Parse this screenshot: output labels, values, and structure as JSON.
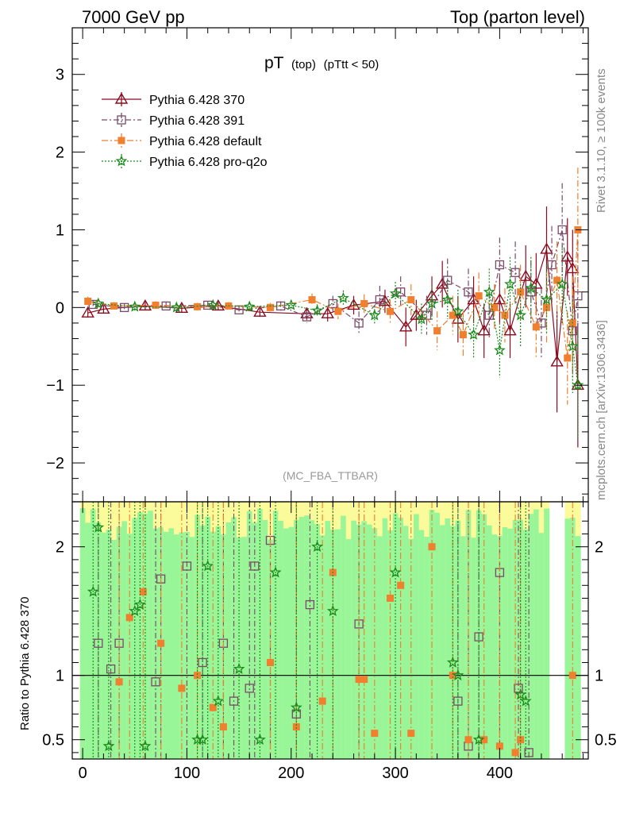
{
  "header": {
    "left_label": "7000 GeV pp",
    "right_label": "Top (parton level)"
  },
  "side_labels": {
    "rivet": "Rivet 3.1.10, ≥ 100k events",
    "mcplots": "mcplots.cern.ch [arXiv:1306.3436]"
  },
  "plot_title": {
    "main": "pT",
    "sub1": "(top)",
    "sub2": "(pTtt < 50)"
  },
  "analysis_tag": "(MC_FBA_TTBAR)",
  "colors": {
    "p370": "#8b0a1e",
    "p391": "#7a4a68",
    "pdefault": "#f07f2e",
    "pq2o": "#1a8a1a",
    "band_green": "#98f598",
    "band_yellow": "#fbfb9c"
  },
  "chart_data": [
    {
      "type": "scatter",
      "name": "main",
      "xlabel": "",
      "ylabel": "",
      "xlim": [
        -10,
        485
      ],
      "ylim": [
        -2.5,
        3.6
      ],
      "x_ticks": [
        "0",
        "100",
        "200",
        "300",
        "400"
      ],
      "y_ticks": [
        "−2",
        "−1",
        "0",
        "1",
        "2",
        "3"
      ],
      "grid": false,
      "legend_position": "top-left",
      "series": [
        {
          "name": "Pythia 6.428 370",
          "x": [
            5,
            20,
            60,
            95,
            130,
            170,
            215,
            235,
            260,
            290,
            310,
            320,
            335,
            345,
            360,
            375,
            385,
            400,
            410,
            425,
            435,
            445,
            455,
            465,
            470,
            475
          ],
          "y": [
            -0.07,
            -0.02,
            0.02,
            -0.01,
            0.02,
            -0.06,
            -0.08,
            -0.08,
            0.03,
            0.08,
            -0.25,
            -0.1,
            0.15,
            0.3,
            -0.15,
            0.1,
            -0.3,
            0.1,
            -0.3,
            0.4,
            0.3,
            0.75,
            -0.7,
            0.65,
            0.5,
            -1.0
          ],
          "err": [
            0.06,
            0.05,
            0.05,
            0.05,
            0.05,
            0.06,
            0.08,
            0.1,
            0.12,
            0.15,
            0.25,
            0.2,
            0.25,
            0.3,
            0.3,
            0.3,
            0.35,
            0.3,
            0.35,
            0.4,
            0.4,
            0.55,
            0.65,
            0.5,
            0.5,
            0.8
          ]
        },
        {
          "name": "Pythia 6.428 391",
          "x": [
            10,
            40,
            80,
            120,
            150,
            190,
            215,
            240,
            265,
            285,
            305,
            330,
            350,
            370,
            390,
            400,
            415,
            430,
            440,
            450,
            460,
            470,
            475
          ],
          "y": [
            0.04,
            0.0,
            0.02,
            0.03,
            -0.03,
            0.02,
            -0.12,
            0.05,
            -0.2,
            0.1,
            0.2,
            -0.1,
            0.35,
            0.2,
            -0.1,
            0.55,
            0.45,
            0.2,
            -0.2,
            0.55,
            1.0,
            -0.3,
            0.15
          ],
          "err": [
            0.05,
            0.05,
            0.05,
            0.05,
            0.05,
            0.06,
            0.08,
            0.1,
            0.15,
            0.18,
            0.2,
            0.25,
            0.28,
            0.3,
            0.3,
            0.35,
            0.4,
            0.4,
            0.45,
            0.5,
            0.6,
            0.6,
            0.7
          ]
        },
        {
          "name": "Pythia 6.428 default",
          "x": [
            5,
            30,
            70,
            110,
            140,
            180,
            220,
            245,
            270,
            295,
            315,
            340,
            355,
            365,
            380,
            395,
            405,
            420,
            435,
            445,
            455,
            465,
            470,
            475
          ],
          "y": [
            0.08,
            0.02,
            0.03,
            0.01,
            0.02,
            0.0,
            0.1,
            -0.05,
            0.05,
            -0.05,
            0.1,
            -0.3,
            -0.1,
            -0.35,
            0.15,
            0.0,
            -0.1,
            0.2,
            -0.25,
            0.0,
            0.35,
            -0.65,
            -0.2,
            1.0
          ],
          "err": [
            0.06,
            0.05,
            0.05,
            0.05,
            0.05,
            0.06,
            0.08,
            0.1,
            0.12,
            0.15,
            0.2,
            0.25,
            0.25,
            0.3,
            0.3,
            0.3,
            0.35,
            0.35,
            0.4,
            0.45,
            0.5,
            0.6,
            0.6,
            0.8
          ]
        },
        {
          "name": "Pythia 6.428 pro-q2o",
          "x": [
            15,
            50,
            90,
            125,
            160,
            200,
            225,
            250,
            280,
            300,
            325,
            335,
            350,
            360,
            375,
            390,
            400,
            410,
            420,
            430,
            445,
            460,
            470,
            475
          ],
          "y": [
            0.05,
            0.01,
            0.0,
            0.03,
            0.01,
            0.03,
            -0.04,
            0.12,
            -0.1,
            0.18,
            -0.15,
            0.05,
            0.1,
            -0.05,
            -0.35,
            0.2,
            -0.55,
            0.3,
            -0.1,
            0.25,
            0.1,
            0.3,
            -0.5,
            -1.0
          ],
          "err": [
            0.05,
            0.05,
            0.05,
            0.05,
            0.05,
            0.06,
            0.08,
            0.1,
            0.12,
            0.15,
            0.2,
            0.22,
            0.25,
            0.28,
            0.3,
            0.3,
            0.35,
            0.35,
            0.4,
            0.4,
            0.45,
            0.5,
            0.6,
            0.7
          ]
        }
      ]
    },
    {
      "type": "scatter",
      "name": "ratio",
      "xlabel": "",
      "ylabel": "Ratio to Pythia 6.428 370",
      "xlim": [
        -10,
        485
      ],
      "ylim": [
        0.35,
        2.35
      ],
      "x_ticks": [
        "0",
        "100",
        "200",
        "300",
        "400"
      ],
      "y_ticks": [
        "0.5",
        "1",
        "2"
      ],
      "reference_line": 1,
      "band_note": "green/yellow uncertainty bands",
      "series": [
        {
          "name": "Pythia 6.428 391",
          "x": [
            15,
            27,
            35,
            70,
            75,
            100,
            115,
            135,
            145,
            160,
            165,
            180,
            205,
            218,
            265,
            360,
            370,
            380,
            400,
            418,
            428
          ],
          "y": [
            1.25,
            1.05,
            1.25,
            0.95,
            1.75,
            1.85,
            1.1,
            1.25,
            0.8,
            0.9,
            1.85,
            2.05,
            0.7,
            1.55,
            1.4,
            0.8,
            0.45,
            1.3,
            1.8,
            0.9,
            0.4
          ]
        },
        {
          "name": "Pythia 6.428 default",
          "x": [
            35,
            45,
            58,
            75,
            95,
            110,
            125,
            135,
            180,
            205,
            230,
            240,
            265,
            270,
            280,
            295,
            305,
            315,
            335,
            355,
            370,
            385,
            400,
            415,
            420,
            470
          ],
          "y": [
            0.95,
            1.45,
            1.65,
            1.25,
            0.9,
            1.0,
            0.75,
            0.6,
            1.1,
            0.6,
            0.8,
            1.8,
            0.97,
            0.97,
            0.55,
            1.6,
            1.7,
            0.55,
            2.0,
            1.0,
            0.5,
            0.5,
            0.45,
            0.4,
            0.5,
            1.0
          ]
        },
        {
          "name": "Pythia 6.428 pro-q2o",
          "x": [
            10,
            15,
            25,
            50,
            55,
            60,
            110,
            115,
            120,
            130,
            150,
            170,
            185,
            205,
            225,
            240,
            300,
            355,
            360,
            380,
            420,
            425
          ],
          "y": [
            1.65,
            2.15,
            0.45,
            1.5,
            1.55,
            0.45,
            0.5,
            0.5,
            1.85,
            0.8,
            1.05,
            0.5,
            1.8,
            0.75,
            2.0,
            1.5,
            1.8,
            1.1,
            1.0,
            0.5,
            0.85,
            0.8
          ]
        }
      ]
    }
  ]
}
